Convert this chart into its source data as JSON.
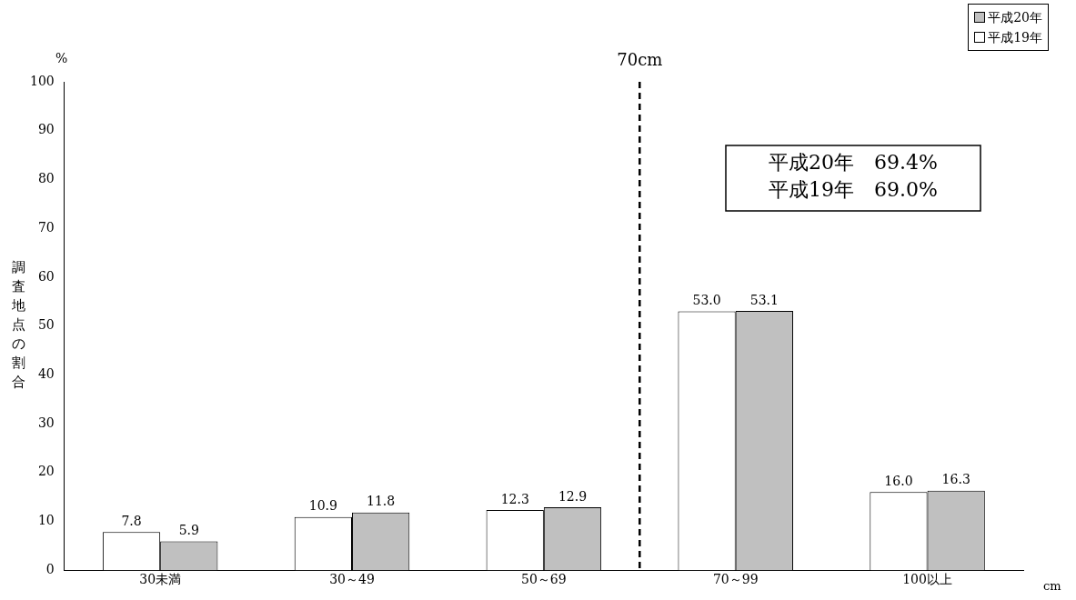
{
  "chart_data": {
    "type": "bar",
    "xlabel": "cm",
    "ylabel": "調査地点の割合",
    "categories": [
      "30未満",
      "30～49",
      "50～69",
      "70～99",
      "100以上"
    ],
    "series": [
      {
        "name": "平成19年",
        "color": "#ffffff",
        "values": [
          7.8,
          10.9,
          12.3,
          53.0,
          16.0
        ],
        "value_labels": [
          "7.8",
          "10.9",
          "12.3",
          "53.0",
          "16.0"
        ]
      },
      {
        "name": "平成20年",
        "color": "#c0c0c0",
        "values": [
          5.9,
          11.8,
          12.9,
          53.1,
          16.3
        ],
        "value_labels": [
          "5.9",
          "11.8",
          "12.9",
          "53.1",
          "16.3"
        ]
      }
    ],
    "ylim": [
      0,
      100
    ],
    "yticks": [
      0,
      10,
      20,
      30,
      40,
      50,
      60,
      70,
      80,
      90,
      100
    ],
    "grid": false,
    "legend": "top right",
    "line_style": "dashed",
    "annotations": [
      "%",
      "平成20年　69.4%",
      "平成19年　69.0%",
      "70cm"
    ]
  }
}
